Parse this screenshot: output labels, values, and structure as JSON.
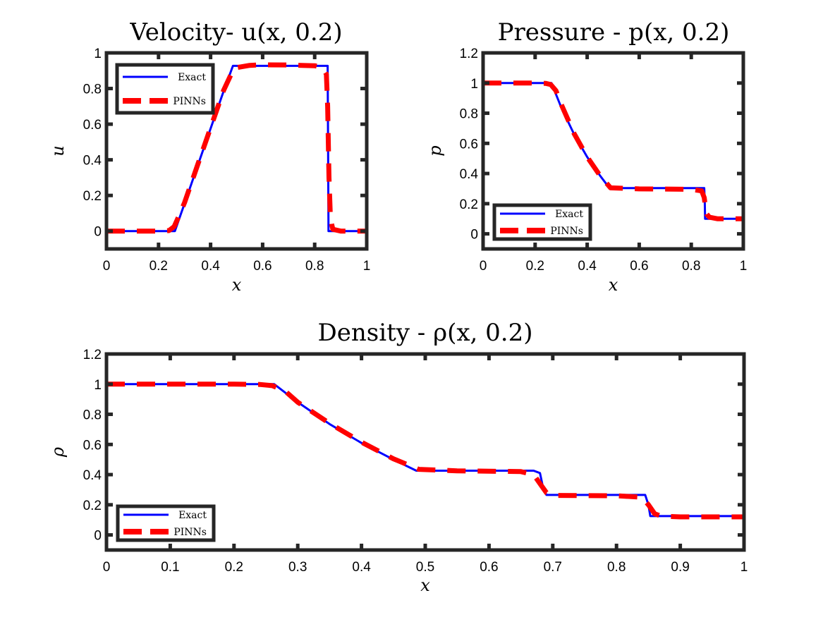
{
  "chart_data": [
    {
      "type": "line",
      "title": "Velocity- u(x, 0.2)",
      "xlabel": "x",
      "ylabel": "u",
      "xlim": [
        0,
        1
      ],
      "ylim": [
        -0.1,
        1
      ],
      "xticks": [
        "0",
        "0.2",
        "0.4",
        "0.6",
        "0.8",
        "1"
      ],
      "yticks": [
        "0",
        "0.2",
        "0.4",
        "0.6",
        "0.8",
        "1"
      ],
      "legend": {
        "position": "top-left",
        "entries": [
          "Exact",
          "PINNs"
        ]
      },
      "grid": false,
      "series": [
        {
          "name": "Exact",
          "color": "#0000ff",
          "style": "solid",
          "x": [
            0,
            0.263,
            0.3,
            0.35,
            0.4,
            0.45,
            0.486,
            0.6,
            0.7,
            0.8,
            0.85,
            0.852,
            0.853,
            1
          ],
          "y": [
            0,
            0,
            0.155,
            0.365,
            0.575,
            0.785,
            0.927,
            0.927,
            0.927,
            0.927,
            0.927,
            0.35,
            0,
            0
          ]
        },
        {
          "name": "PINNs",
          "color": "#ff0000",
          "style": "dashed",
          "x": [
            0,
            0.2,
            0.24,
            0.26,
            0.28,
            0.3,
            0.35,
            0.4,
            0.45,
            0.49,
            0.55,
            0.6,
            0.7,
            0.8,
            0.83,
            0.845,
            0.85,
            0.855,
            0.86,
            0.865,
            0.87,
            0.9,
            0.95,
            1
          ],
          "y": [
            0,
            0,
            0.003,
            0.025,
            0.09,
            0.16,
            0.37,
            0.58,
            0.79,
            0.915,
            0.93,
            0.933,
            0.932,
            0.928,
            0.918,
            0.88,
            0.7,
            0.3,
            0.1,
            0.04,
            0.01,
            0,
            0,
            0
          ]
        }
      ]
    },
    {
      "type": "line",
      "title": "Pressure - p(x, 0.2)",
      "xlabel": "x",
      "ylabel": "p",
      "xlim": [
        0,
        1
      ],
      "ylim": [
        -0.1,
        1.2
      ],
      "xticks": [
        "0",
        "0.2",
        "0.4",
        "0.6",
        "0.8",
        "1"
      ],
      "yticks": [
        "0",
        "0.2",
        "0.4",
        "0.6",
        "0.8",
        "1",
        "1.2"
      ],
      "legend": {
        "position": "bottom-left",
        "entries": [
          "Exact",
          "PINNs"
        ]
      },
      "grid": false,
      "series": [
        {
          "name": "Exact",
          "color": "#0000ff",
          "style": "solid",
          "x": [
            0,
            0.263,
            0.3,
            0.35,
            0.4,
            0.45,
            0.486,
            0.6,
            0.7,
            0.8,
            0.85,
            0.852,
            0.853,
            1
          ],
          "y": [
            1,
            1,
            0.84,
            0.66,
            0.51,
            0.385,
            0.303,
            0.303,
            0.303,
            0.303,
            0.303,
            0.2,
            0.1,
            0.1
          ]
        },
        {
          "name": "PINNs",
          "color": "#ff0000",
          "style": "dashed",
          "x": [
            0,
            0.2,
            0.24,
            0.26,
            0.28,
            0.3,
            0.35,
            0.4,
            0.45,
            0.49,
            0.6,
            0.7,
            0.8,
            0.84,
            0.85,
            0.855,
            0.86,
            0.87,
            0.9,
            0.95,
            1
          ],
          "y": [
            1,
            1,
            0.998,
            0.99,
            0.95,
            0.86,
            0.665,
            0.51,
            0.385,
            0.305,
            0.298,
            0.297,
            0.295,
            0.285,
            0.24,
            0.17,
            0.13,
            0.11,
            0.1,
            0.1,
            0.1
          ]
        }
      ]
    },
    {
      "type": "line",
      "title": "Density - ρ(x, 0.2)",
      "xlabel": "x",
      "ylabel": "ρ",
      "xlim": [
        0,
        1
      ],
      "ylim": [
        -0.1,
        1.2
      ],
      "xticks": [
        "0",
        "0.1",
        "0.2",
        "0.3",
        "0.4",
        "0.5",
        "0.6",
        "0.7",
        "0.8",
        "0.9",
        "1"
      ],
      "yticks": [
        "0",
        "0.2",
        "0.4",
        "0.6",
        "0.8",
        "1",
        "1.2"
      ],
      "legend": {
        "position": "bottom-left",
        "entries": [
          "Exact",
          "PINNs"
        ]
      },
      "grid": false,
      "series": [
        {
          "name": "Exact",
          "color": "#0000ff",
          "style": "solid",
          "x": [
            0,
            0.263,
            0.3,
            0.35,
            0.4,
            0.45,
            0.486,
            0.6,
            0.67,
            0.68,
            0.685,
            0.69,
            0.7,
            0.8,
            0.845,
            0.85,
            0.853,
            0.86,
            1
          ],
          "y": [
            1,
            1,
            0.88,
            0.735,
            0.61,
            0.5,
            0.426,
            0.426,
            0.426,
            0.41,
            0.31,
            0.265,
            0.265,
            0.265,
            0.265,
            0.2,
            0.125,
            0.125,
            0.125
          ]
        },
        {
          "name": "PINNs",
          "color": "#ff0000",
          "style": "dashed",
          "x": [
            0,
            0.2,
            0.24,
            0.26,
            0.28,
            0.3,
            0.35,
            0.4,
            0.45,
            0.49,
            0.55,
            0.6,
            0.65,
            0.67,
            0.68,
            0.69,
            0.7,
            0.8,
            0.84,
            0.85,
            0.86,
            0.87,
            0.9,
            1
          ],
          "y": [
            1,
            1,
            0.998,
            0.99,
            0.955,
            0.88,
            0.74,
            0.615,
            0.505,
            0.435,
            0.425,
            0.423,
            0.42,
            0.4,
            0.34,
            0.28,
            0.262,
            0.26,
            0.25,
            0.2,
            0.14,
            0.125,
            0.12,
            0.12
          ]
        }
      ]
    }
  ]
}
